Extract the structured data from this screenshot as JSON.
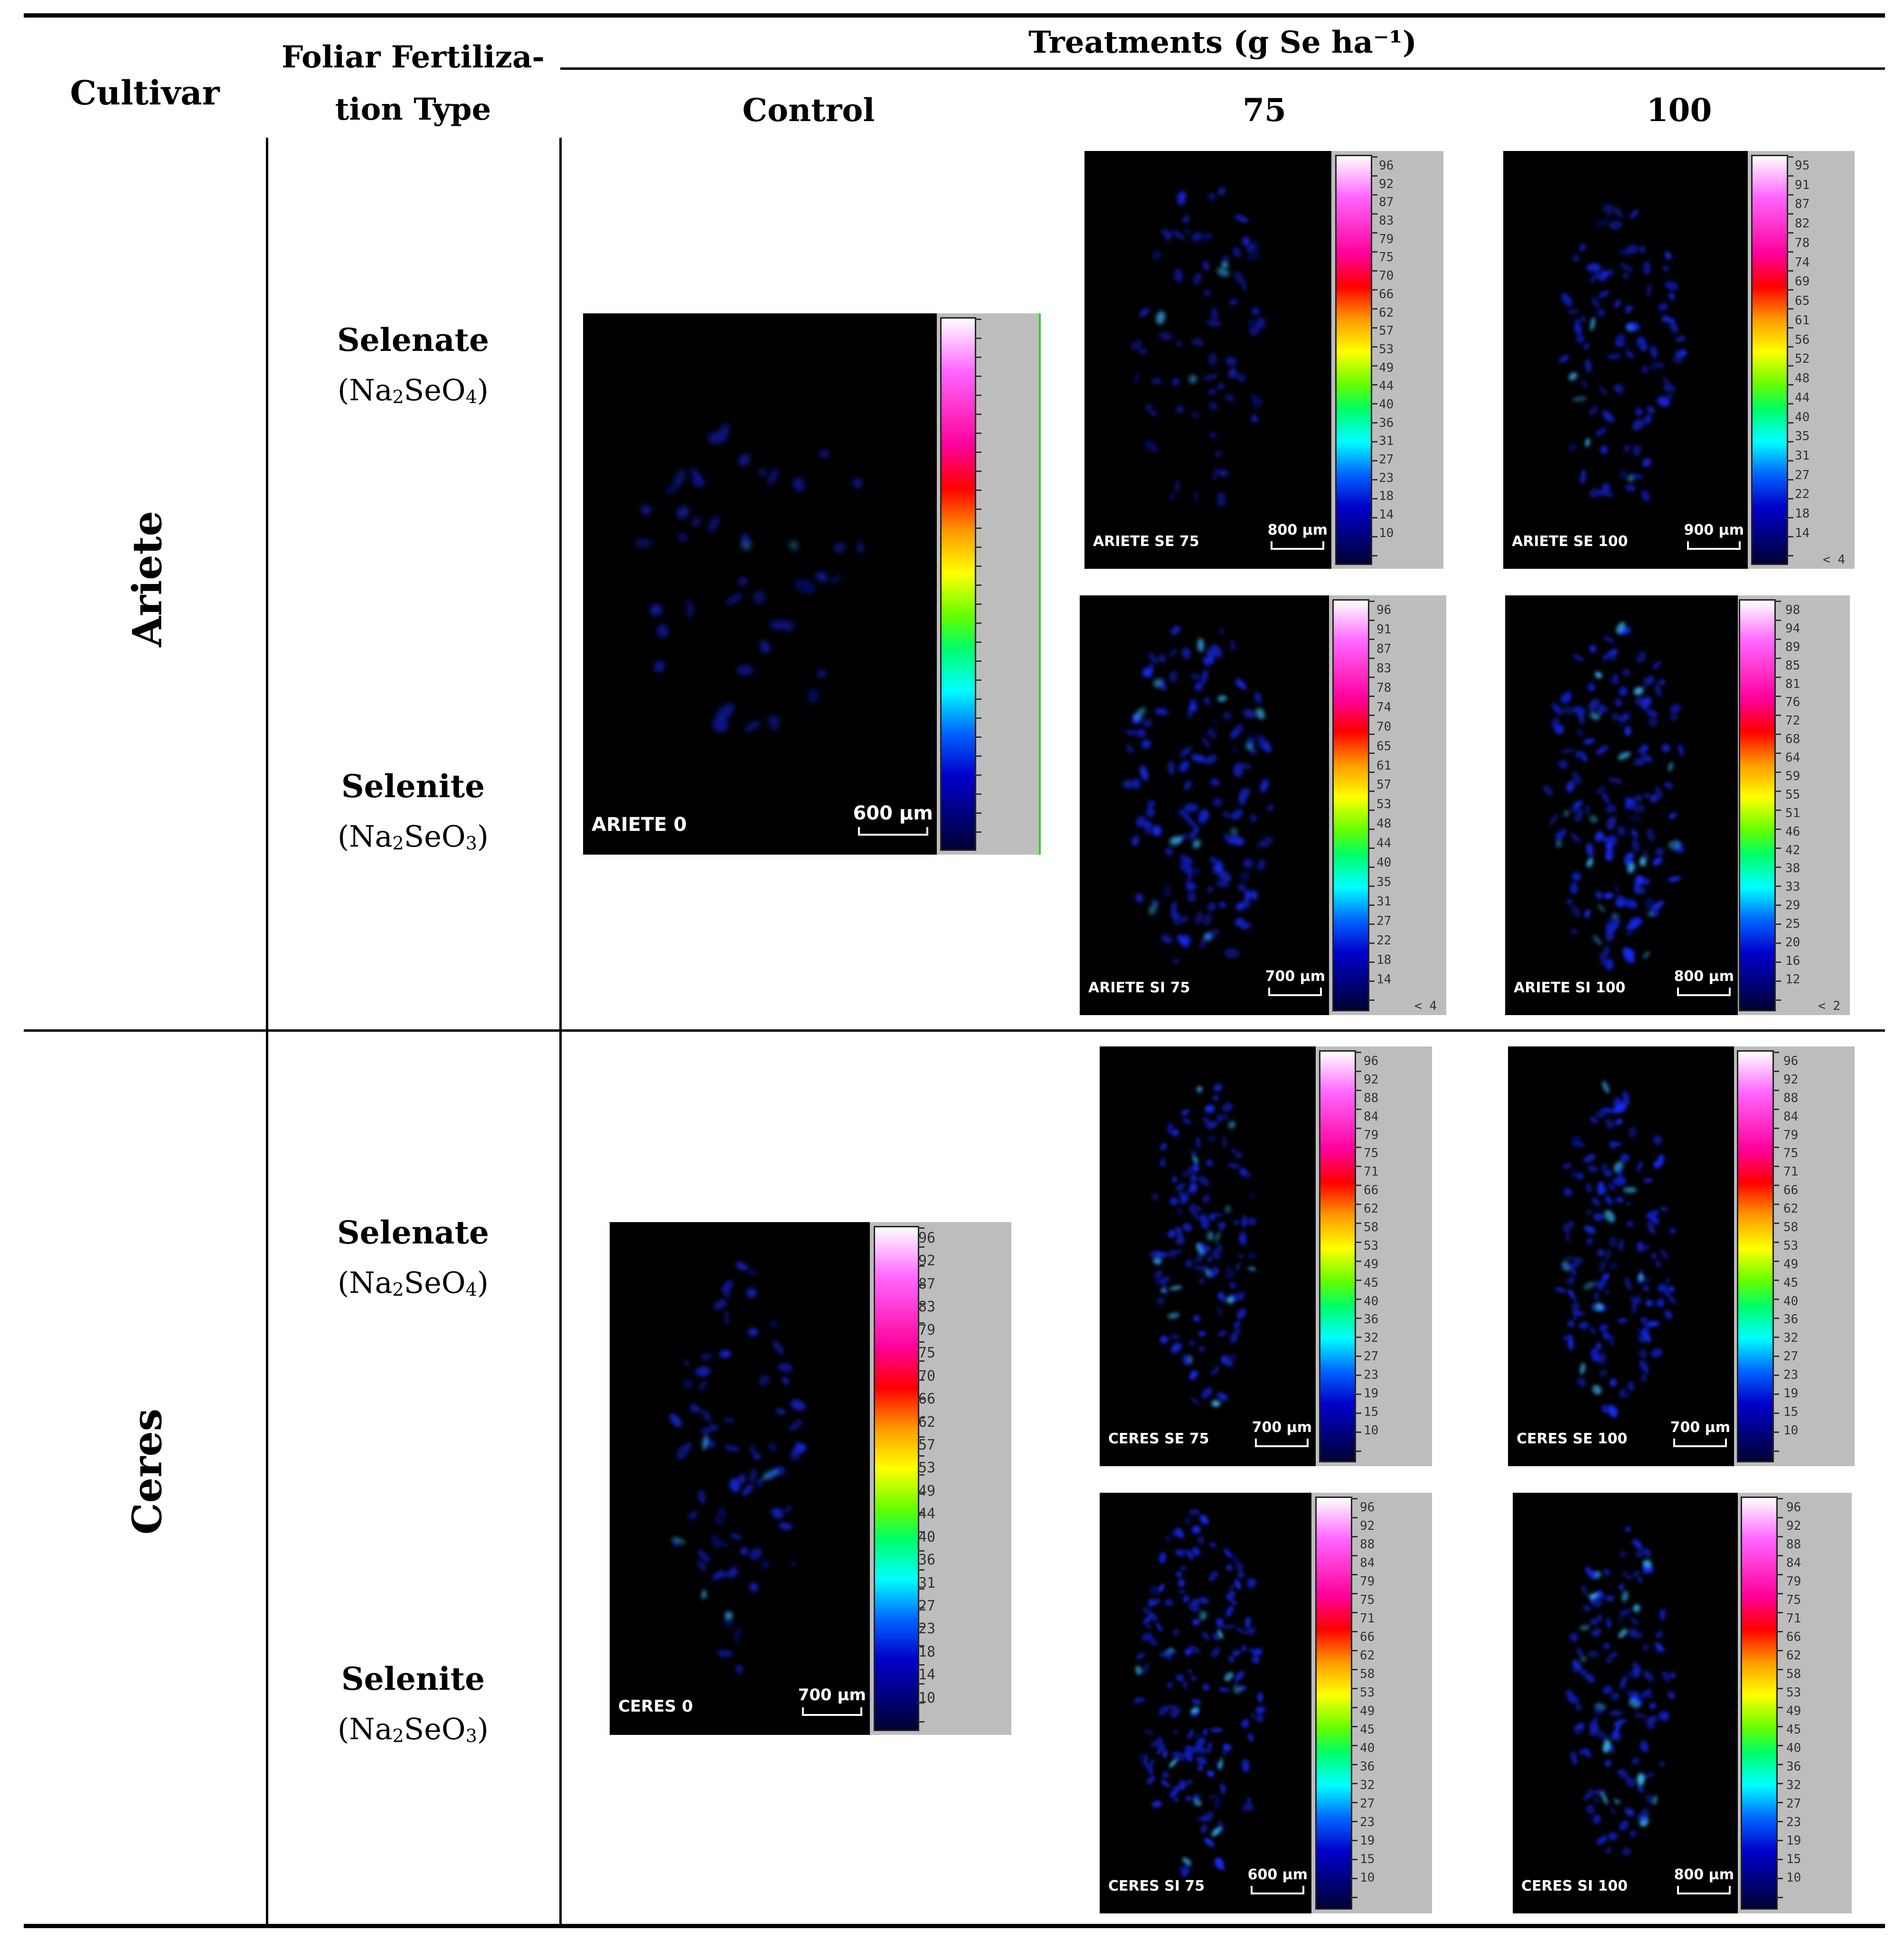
{
  "header": {
    "cultivar": "Cultivar",
    "fert_type_line1": "Foliar Fertiliza-",
    "fert_type_line2": "tion Type",
    "treatments": "Treatments (g Se ha⁻¹)",
    "col_control": "Control",
    "col_75": "75",
    "col_100": "100"
  },
  "rows": {
    "ariete": "Ariete",
    "ceres": "Ceres"
  },
  "fert": {
    "selenate_name": "Selenate",
    "selenate_formula_a": "(Na",
    "selenate_formula_b": "2",
    "selenate_formula_c": "SeO",
    "selenate_formula_d": "4",
    "selenate_formula_e": ")",
    "selenite_name": "Selenite",
    "selenite_formula_a": "(Na",
    "selenite_formula_b": "2",
    "selenite_formula_c": "SeO",
    "selenite_formula_d": "3",
    "selenite_formula_e": ")"
  },
  "panels": {
    "ariete_0": {
      "label": "ARIETE 0",
      "scale": "600 µm",
      "ticks": [],
      "under": ""
    },
    "ariete_se75": {
      "label": "ARIETE SE 75",
      "scale": "800 µm",
      "ticks": [
        "96",
        "92",
        "87",
        "83",
        "79",
        "75",
        "70",
        "66",
        "62",
        "57",
        "53",
        "49",
        "44",
        "40",
        "36",
        "31",
        "27",
        "23",
        "18",
        "14",
        "10"
      ],
      "under": ""
    },
    "ariete_se100": {
      "label": "ARIETE SE 100",
      "scale": "900 µm",
      "ticks": [
        "95",
        "91",
        "87",
        "82",
        "78",
        "74",
        "69",
        "65",
        "61",
        "56",
        "52",
        "48",
        "44",
        "40",
        "35",
        "31",
        "27",
        "22",
        "18",
        "14"
      ],
      "under": "< 4"
    },
    "ariete_si75": {
      "label": "ARIETE SI 75",
      "scale": "700 µm",
      "ticks": [
        "96",
        "91",
        "87",
        "83",
        "78",
        "74",
        "70",
        "65",
        "61",
        "57",
        "53",
        "48",
        "44",
        "40",
        "35",
        "31",
        "27",
        "22",
        "18",
        "14"
      ],
      "under": "< 4"
    },
    "ariete_si100": {
      "label": "ARIETE SI 100",
      "scale": "800 µm",
      "ticks": [
        "98",
        "94",
        "89",
        "85",
        "81",
        "76",
        "72",
        "68",
        "64",
        "59",
        "55",
        "51",
        "46",
        "42",
        "38",
        "33",
        "29",
        "25",
        "20",
        "16",
        "12"
      ],
      "under": "< 2"
    },
    "ceres_0": {
      "label": "CERES 0",
      "scale": "700 µm",
      "ticks": [
        "96",
        "92",
        "87",
        "83",
        "79",
        "75",
        "70",
        "66",
        "62",
        "57",
        "53",
        "49",
        "44",
        "40",
        "36",
        "31",
        "27",
        "23",
        "18",
        "14",
        "10"
      ],
      "under": ""
    },
    "ceres_se75": {
      "label": "CERES SE 75",
      "scale": "700 µm",
      "ticks": [
        "96",
        "92",
        "88",
        "84",
        "79",
        "75",
        "71",
        "66",
        "62",
        "58",
        "53",
        "49",
        "45",
        "40",
        "36",
        "32",
        "27",
        "23",
        "19",
        "15",
        "10"
      ],
      "under": ""
    },
    "ceres_se100": {
      "label": "CERES SE 100",
      "scale": "700 µm",
      "ticks": [
        "96",
        "92",
        "88",
        "84",
        "79",
        "75",
        "71",
        "66",
        "62",
        "58",
        "53",
        "49",
        "45",
        "40",
        "36",
        "32",
        "27",
        "23",
        "19",
        "15",
        "10"
      ],
      "under": ""
    },
    "ceres_si75": {
      "label": "CERES SI 75",
      "scale": "600 µm",
      "ticks": [
        "96",
        "92",
        "88",
        "84",
        "79",
        "75",
        "71",
        "66",
        "62",
        "58",
        "53",
        "49",
        "45",
        "40",
        "36",
        "32",
        "27",
        "23",
        "19",
        "15",
        "10"
      ],
      "under": ""
    },
    "ceres_si100": {
      "label": "CERES SI 100",
      "scale": "800 µm",
      "ticks": [
        "96",
        "92",
        "88",
        "84",
        "79",
        "75",
        "71",
        "66",
        "62",
        "58",
        "53",
        "49",
        "45",
        "40",
        "36",
        "32",
        "27",
        "23",
        "19",
        "15",
        "10"
      ],
      "under": ""
    }
  }
}
